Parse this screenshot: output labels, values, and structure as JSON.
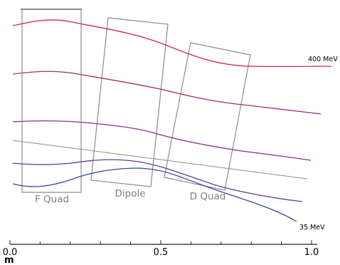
{
  "colors": {
    "background": "#ffffff",
    "element_outline": "#8c8c8c",
    "reference_line": "#8c8c8c",
    "axis": "#222222",
    "text": "#000000",
    "element_label": "#808080",
    "trajectory_high": "#d81b60",
    "trajectory_low": "#3949ab"
  },
  "elements": [
    {
      "id": "f-quad",
      "label": "F Quad"
    },
    {
      "id": "dipole",
      "label": "Dipole"
    },
    {
      "id": "d-quad",
      "label": "D Quad"
    }
  ],
  "energy_labels": {
    "high": "400 MeV",
    "low": "35 MeV"
  },
  "axis": {
    "unit": "m",
    "ticks": [
      {
        "value": 0.0,
        "label": "0.0"
      },
      {
        "value": 0.5,
        "label": "0.5"
      },
      {
        "value": 1.0,
        "label": "1.0"
      }
    ],
    "minor_step": 0.1
  },
  "trajectories": [
    {
      "name": "400 MeV",
      "energy_mev": 400
    },
    {
      "name": "",
      "energy_mev": null
    },
    {
      "name": "",
      "energy_mev": null
    },
    {
      "name": "",
      "energy_mev": null
    },
    {
      "name": "35 MeV",
      "energy_mev": 35
    }
  ]
}
